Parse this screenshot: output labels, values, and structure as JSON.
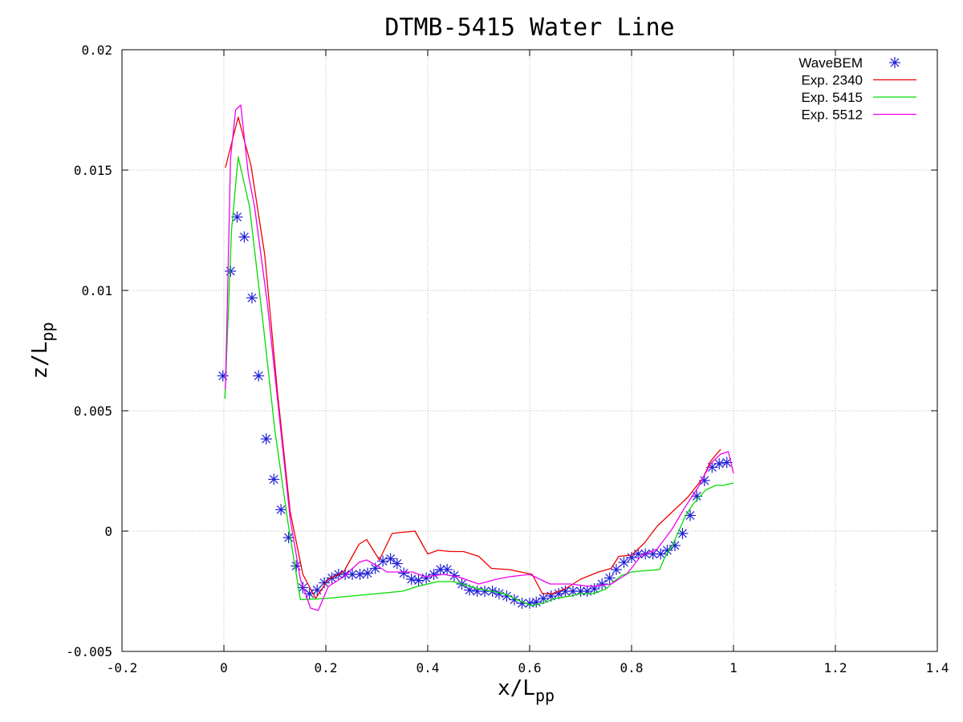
{
  "chart_data": {
    "type": "line",
    "title": "DTMB-5415 Water Line",
    "xlabel": {
      "main": "x/L",
      "sub": "pp"
    },
    "ylabel": {
      "main": "z/L",
      "sub": "pp"
    },
    "xlim": [
      -0.2,
      1.4
    ],
    "ylim": [
      -0.005,
      0.02
    ],
    "xticks": [
      -0.2,
      0,
      0.2,
      0.4,
      0.6,
      0.8,
      1,
      1.2,
      1.4
    ],
    "xtick_labels": [
      "-0.2",
      "0",
      "0.2",
      "0.4",
      "0.6",
      "0.8",
      "1",
      "1.2",
      "1.4"
    ],
    "yticks": [
      -0.005,
      0,
      0.005,
      0.01,
      0.015,
      0.02
    ],
    "ytick_labels": [
      "-0.005",
      "0",
      "0.005",
      "0.01",
      "0.015",
      "0.02"
    ],
    "grid": true,
    "legend_position": "top-right",
    "series": [
      {
        "name": "WaveBEM",
        "style": "markers",
        "marker": "asterisk",
        "color": "#1f1fd6",
        "x": [
          -0.002,
          0.013,
          0.026,
          0.04,
          0.055,
          0.068,
          0.083,
          0.098,
          0.112,
          0.127,
          0.142,
          0.155,
          0.168,
          0.183,
          0.197,
          0.212,
          0.225,
          0.238,
          0.252,
          0.267,
          0.282,
          0.297,
          0.312,
          0.327,
          0.34,
          0.353,
          0.368,
          0.382,
          0.397,
          0.412,
          0.425,
          0.438,
          0.452,
          0.467,
          0.482,
          0.497,
          0.512,
          0.527,
          0.54,
          0.555,
          0.57,
          0.585,
          0.6,
          0.613,
          0.627,
          0.642,
          0.657,
          0.67,
          0.685,
          0.7,
          0.713,
          0.727,
          0.742,
          0.757,
          0.77,
          0.785,
          0.8,
          0.813,
          0.827,
          0.842,
          0.857,
          0.87,
          0.885,
          0.9,
          0.915,
          0.928,
          0.943,
          0.958,
          0.972,
          0.987
        ],
        "y": [
          0.00645,
          0.0108,
          0.01305,
          0.01222,
          0.00969,
          0.00645,
          0.00383,
          0.00215,
          0.00089,
          -0.00027,
          -0.00145,
          -0.00235,
          -0.0026,
          -0.00245,
          -0.00215,
          -0.00195,
          -0.0018,
          -0.0018,
          -0.0018,
          -0.0018,
          -0.00175,
          -0.00155,
          -0.00125,
          -0.00115,
          -0.00135,
          -0.00175,
          -0.002,
          -0.00205,
          -0.00195,
          -0.0018,
          -0.0016,
          -0.0016,
          -0.00185,
          -0.0022,
          -0.00245,
          -0.0025,
          -0.0025,
          -0.0025,
          -0.0026,
          -0.0027,
          -0.00285,
          -0.003,
          -0.003,
          -0.00295,
          -0.0028,
          -0.0027,
          -0.0026,
          -0.0025,
          -0.0025,
          -0.0025,
          -0.0025,
          -0.0024,
          -0.0022,
          -0.00195,
          -0.0016,
          -0.0013,
          -0.0011,
          -0.00095,
          -0.00095,
          -0.00095,
          -0.00095,
          -0.0008,
          -0.0006,
          -0.0001,
          0.00065,
          0.00145,
          0.0021,
          0.00265,
          0.0028,
          0.00285
        ]
      },
      {
        "name": "Exp. 2340",
        "style": "line",
        "color": "#ee0000",
        "x": [
          0.003,
          0.028,
          0.053,
          0.08,
          0.105,
          0.13,
          0.155,
          0.18,
          0.205,
          0.235,
          0.265,
          0.28,
          0.305,
          0.33,
          0.35,
          0.375,
          0.4,
          0.42,
          0.445,
          0.47,
          0.5,
          0.525,
          0.56,
          0.605,
          0.625,
          0.645,
          0.67,
          0.7,
          0.735,
          0.76,
          0.775,
          0.8,
          0.825,
          0.85,
          0.88,
          0.91,
          0.94,
          0.955,
          0.975
        ],
        "y": [
          0.0151,
          0.0172,
          0.0152,
          0.0115,
          0.0058,
          0.0008,
          -0.0018,
          -0.0028,
          -0.002,
          -0.0017,
          -0.00055,
          -0.00035,
          -0.0012,
          -0.0001,
          -5e-05,
          0.0,
          -0.00095,
          -0.0008,
          -0.00085,
          -0.00085,
          -0.00105,
          -0.00155,
          -0.0016,
          -0.0018,
          -0.0026,
          -0.0026,
          -0.0024,
          -0.002,
          -0.0017,
          -0.00155,
          -0.00105,
          -0.001,
          -0.0005,
          0.0002,
          0.0008,
          0.0014,
          0.0022,
          0.0029,
          0.0034
        ]
      },
      {
        "name": "Exp. 5415",
        "style": "line",
        "color": "#00dd00",
        "x": [
          0.002,
          0.015,
          0.028,
          0.05,
          0.075,
          0.1,
          0.125,
          0.15,
          0.2,
          0.25,
          0.3,
          0.35,
          0.38,
          0.42,
          0.45,
          0.5,
          0.55,
          0.58,
          0.605,
          0.625,
          0.65,
          0.68,
          0.7,
          0.725,
          0.75,
          0.765,
          0.78,
          0.8,
          0.825,
          0.855,
          0.865,
          0.88,
          0.905,
          0.92,
          0.945,
          0.965,
          0.98,
          1.0
        ],
        "y": [
          0.0055,
          0.0125,
          0.01555,
          0.0135,
          0.009,
          0.0042,
          0.00045,
          -0.00285,
          -0.0028,
          -0.0027,
          -0.0026,
          -0.0025,
          -0.0023,
          -0.0021,
          -0.0021,
          -0.0024,
          -0.0026,
          -0.0029,
          -0.0031,
          -0.003,
          -0.0028,
          -0.0027,
          -0.0026,
          -0.0026,
          -0.0024,
          -0.0021,
          -0.00185,
          -0.0017,
          -0.00165,
          -0.0016,
          -0.0011,
          -0.0006,
          0.0006,
          0.0011,
          0.0017,
          0.0019,
          0.0019,
          0.002
        ]
      },
      {
        "name": "Exp. 5512",
        "style": "line",
        "color": "#ee00ee",
        "x": [
          0.003,
          0.013,
          0.023,
          0.033,
          0.048,
          0.06,
          0.085,
          0.11,
          0.13,
          0.15,
          0.17,
          0.185,
          0.205,
          0.235,
          0.265,
          0.28,
          0.305,
          0.32,
          0.345,
          0.37,
          0.395,
          0.43,
          0.46,
          0.5,
          0.535,
          0.56,
          0.6,
          0.64,
          0.68,
          0.72,
          0.76,
          0.79,
          0.82,
          0.85,
          0.88,
          0.905,
          0.93,
          0.955,
          0.975,
          0.99,
          1.0
        ],
        "y": [
          0.0059,
          0.0155,
          0.0175,
          0.0177,
          0.0148,
          0.0135,
          0.0095,
          0.0045,
          0.0005,
          -0.002,
          -0.0032,
          -0.0033,
          -0.0023,
          -0.0019,
          -0.0013,
          -0.0012,
          -0.0015,
          -0.0017,
          -0.0017,
          -0.0017,
          -0.0019,
          -0.0018,
          -0.0019,
          -0.0022,
          -0.002,
          -0.0019,
          -0.0018,
          -0.0022,
          -0.0022,
          -0.0023,
          -0.0022,
          -0.0018,
          -0.001,
          -0.00075,
          0.0001,
          0.001,
          0.0018,
          0.0028,
          0.0032,
          0.0033,
          0.0024
        ]
      }
    ]
  }
}
